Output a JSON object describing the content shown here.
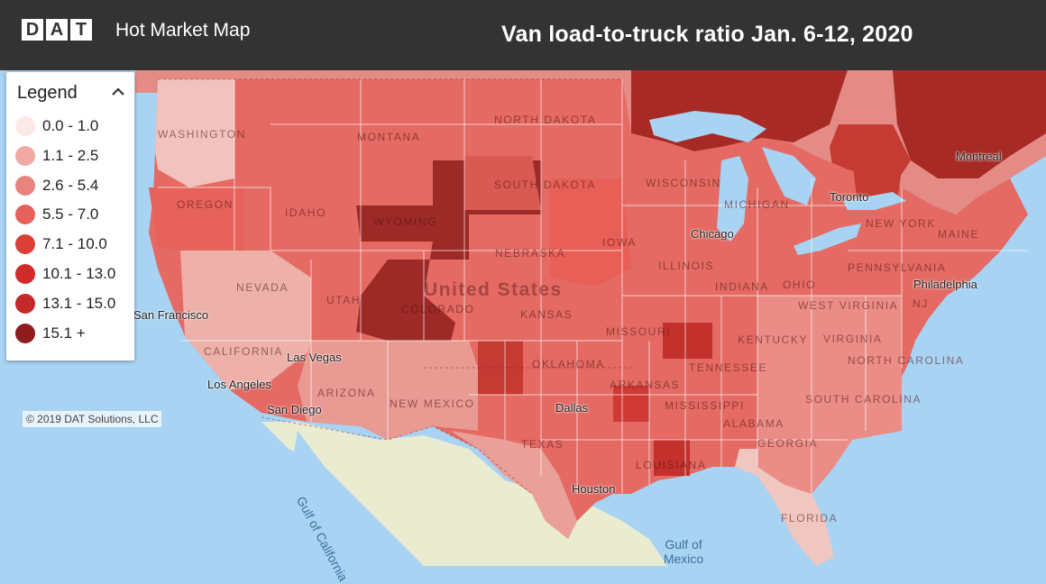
{
  "header": {
    "logo_letters": [
      "D",
      "A",
      "T"
    ],
    "app_title": "Hot Market Map",
    "map_title": "Van load-to-truck ratio  Jan. 6-12, 2020"
  },
  "legend": {
    "title": "Legend",
    "collapse_icon": "chevron-up-icon",
    "items": [
      {
        "label": "0.0 - 1.0",
        "color": "#fbe9e7"
      },
      {
        "label": "1.1 - 2.5",
        "color": "#f0a9a5"
      },
      {
        "label": "2.6 - 5.4",
        "color": "#e8837d"
      },
      {
        "label": "5.5 - 7.0",
        "color": "#e4625b"
      },
      {
        "label": "7.1 - 10.0",
        "color": "#dc3f38"
      },
      {
        "label": "10.1 - 13.0",
        "color": "#d22b2b"
      },
      {
        "label": "13.1 - 15.0",
        "color": "#c42828"
      },
      {
        "label": "15.1 +",
        "color": "#8f1d1d"
      }
    ]
  },
  "copyright": "© 2019 DAT Solutions, LLC",
  "map": {
    "country": "United States",
    "places": [
      "San Francisco",
      "Las Vegas",
      "Los Angeles",
      "San Diego",
      "Chicago",
      "Toronto",
      "Montreal",
      "Philadelphia",
      "Dallas",
      "Houston"
    ],
    "states": [
      "WASHINGTON",
      "OREGON",
      "IDAHO",
      "MONTANA",
      "NORTH DAKOTA",
      "SOUTH DAKOTA",
      "WYOMING",
      "NEBRASKA",
      "NEVADA",
      "UTAH",
      "COLORADO",
      "KANSAS",
      "CALIFORNIA",
      "ARIZONA",
      "NEW MEXICO",
      "TEXAS",
      "OKLAHOMA",
      "IOWA",
      "WISCONSIN",
      "MICHIGAN",
      "ILLINOIS",
      "INDIANA",
      "OHIO",
      "PENNSYLVANIA",
      "NEW YORK",
      "MISSOURI",
      "ARKANSAS",
      "TENNESSEE",
      "MISSISSIPPI",
      "ALABAMA",
      "GEORGIA",
      "LOUISIANA",
      "FLORIDA",
      "KENTUCKY",
      "WEST VIRGINIA",
      "VIRGINIA",
      "NORTH CAROLINA",
      "SOUTH CAROLINA",
      "MAINE",
      "NJ"
    ],
    "water": [
      "Gulf of California",
      "Gulf of Mexico"
    ]
  }
}
